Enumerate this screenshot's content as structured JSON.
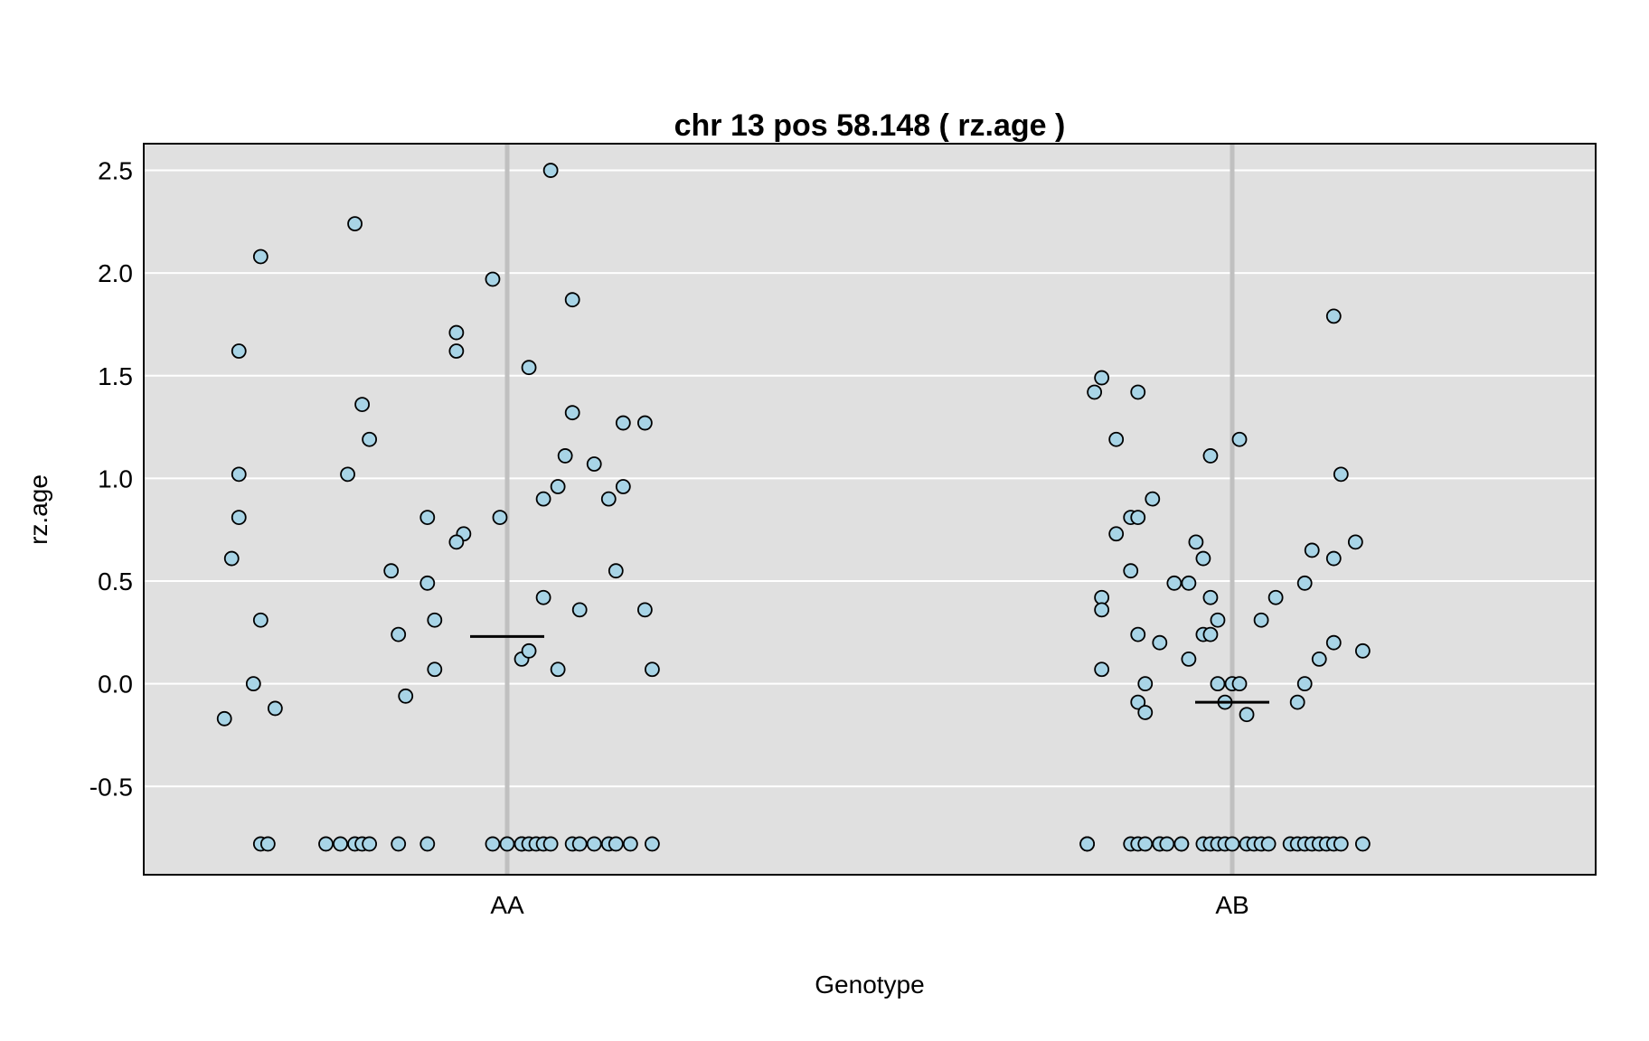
{
  "chart_data": {
    "type": "scatter",
    "title": "chr 13 pos 58.148 ( rz.age )",
    "xlabel": "Genotype",
    "ylabel": "rz.age",
    "categories": [
      "AA",
      "AB"
    ],
    "y_ticks": [
      "2.5",
      "2.0",
      "1.5",
      "1.0",
      "0.5",
      "0.0",
      "-0.5"
    ],
    "ylim": [
      -0.93,
      2.63
    ],
    "grid": true,
    "point_color": "#a8d4e6",
    "panel_color": "#e0e0e0",
    "series": [
      {
        "category": "AA",
        "mean": 0.23,
        "points": [
          {
            "j": -0.39,
            "y": -0.17
          },
          {
            "j": -0.37,
            "y": 1.62
          },
          {
            "j": -0.37,
            "y": 1.02
          },
          {
            "j": -0.37,
            "y": 0.81
          },
          {
            "j": -0.38,
            "y": 0.61
          },
          {
            "j": -0.34,
            "y": 2.08
          },
          {
            "j": -0.34,
            "y": 0.31
          },
          {
            "j": -0.35,
            "y": 0.0
          },
          {
            "j": -0.32,
            "y": -0.12
          },
          {
            "j": -0.21,
            "y": 2.24
          },
          {
            "j": -0.2,
            "y": 1.36
          },
          {
            "j": -0.19,
            "y": 1.19
          },
          {
            "j": -0.22,
            "y": 1.02
          },
          {
            "j": -0.16,
            "y": 0.55
          },
          {
            "j": -0.15,
            "y": 0.24
          },
          {
            "j": -0.14,
            "y": -0.06
          },
          {
            "j": -0.11,
            "y": 0.81
          },
          {
            "j": -0.11,
            "y": 0.49
          },
          {
            "j": -0.1,
            "y": 0.31
          },
          {
            "j": -0.1,
            "y": 0.07
          },
          {
            "j": -0.07,
            "y": 1.71
          },
          {
            "j": -0.07,
            "y": 1.62
          },
          {
            "j": -0.06,
            "y": 0.73
          },
          {
            "j": -0.07,
            "y": 0.69
          },
          {
            "j": -0.02,
            "y": 1.97
          },
          {
            "j": -0.01,
            "y": 0.81
          },
          {
            "j": 0.02,
            "y": 0.12
          },
          {
            "j": 0.03,
            "y": 1.54
          },
          {
            "j": 0.03,
            "y": 0.16
          },
          {
            "j": 0.05,
            "y": 0.9
          },
          {
            "j": 0.05,
            "y": 0.42
          },
          {
            "j": 0.06,
            "y": 2.5
          },
          {
            "j": 0.07,
            "y": 0.96
          },
          {
            "j": 0.07,
            "y": 0.07
          },
          {
            "j": 0.08,
            "y": 1.11
          },
          {
            "j": 0.09,
            "y": 1.87
          },
          {
            "j": 0.09,
            "y": 1.32
          },
          {
            "j": 0.1,
            "y": 0.36
          },
          {
            "j": 0.12,
            "y": 1.07
          },
          {
            "j": 0.14,
            "y": 0.9
          },
          {
            "j": 0.15,
            "y": 0.55
          },
          {
            "j": 0.16,
            "y": 1.27
          },
          {
            "j": 0.16,
            "y": 0.96
          },
          {
            "j": 0.19,
            "y": 1.27
          },
          {
            "j": 0.19,
            "y": 0.36
          },
          {
            "j": 0.2,
            "y": 0.07
          },
          {
            "j": -0.34,
            "y": -0.78
          },
          {
            "j": -0.33,
            "y": -0.78
          },
          {
            "j": -0.25,
            "y": -0.78
          },
          {
            "j": -0.23,
            "y": -0.78
          },
          {
            "j": -0.21,
            "y": -0.78
          },
          {
            "j": -0.2,
            "y": -0.78
          },
          {
            "j": -0.19,
            "y": -0.78
          },
          {
            "j": -0.15,
            "y": -0.78
          },
          {
            "j": -0.11,
            "y": -0.78
          },
          {
            "j": -0.02,
            "y": -0.78
          },
          {
            "j": 0.0,
            "y": -0.78
          },
          {
            "j": 0.02,
            "y": -0.78
          },
          {
            "j": 0.02,
            "y": -0.78
          },
          {
            "j": 0.03,
            "y": -0.78
          },
          {
            "j": 0.04,
            "y": -0.78
          },
          {
            "j": 0.05,
            "y": -0.78
          },
          {
            "j": 0.06,
            "y": -0.78
          },
          {
            "j": 0.09,
            "y": -0.78
          },
          {
            "j": 0.1,
            "y": -0.78
          },
          {
            "j": 0.12,
            "y": -0.78
          },
          {
            "j": 0.14,
            "y": -0.78
          },
          {
            "j": 0.15,
            "y": -0.78
          },
          {
            "j": 0.17,
            "y": -0.78
          },
          {
            "j": 0.2,
            "y": -0.78
          }
        ]
      },
      {
        "category": "AB",
        "mean": -0.09,
        "points": [
          {
            "j": -0.19,
            "y": 1.42
          },
          {
            "j": -0.18,
            "y": 1.49
          },
          {
            "j": -0.13,
            "y": 1.42
          },
          {
            "j": -0.16,
            "y": 1.19
          },
          {
            "j": -0.16,
            "y": 0.73
          },
          {
            "j": -0.14,
            "y": 0.81
          },
          {
            "j": -0.13,
            "y": 0.81
          },
          {
            "j": -0.11,
            "y": 0.9
          },
          {
            "j": -0.14,
            "y": 0.55
          },
          {
            "j": -0.18,
            "y": 0.42
          },
          {
            "j": -0.18,
            "y": 0.36
          },
          {
            "j": -0.18,
            "y": 0.07
          },
          {
            "j": -0.13,
            "y": 0.24
          },
          {
            "j": -0.13,
            "y": -0.09
          },
          {
            "j": -0.12,
            "y": 0.0
          },
          {
            "j": -0.12,
            "y": -0.14
          },
          {
            "j": -0.1,
            "y": 0.2
          },
          {
            "j": -0.08,
            "y": 0.49
          },
          {
            "j": -0.06,
            "y": 0.49
          },
          {
            "j": -0.05,
            "y": 0.69
          },
          {
            "j": -0.04,
            "y": 0.61
          },
          {
            "j": -0.04,
            "y": 0.24
          },
          {
            "j": -0.03,
            "y": 0.42
          },
          {
            "j": -0.03,
            "y": 0.24
          },
          {
            "j": -0.06,
            "y": 0.12
          },
          {
            "j": -0.03,
            "y": 1.11
          },
          {
            "j": -0.02,
            "y": 0.31
          },
          {
            "j": -0.02,
            "y": 0.0
          },
          {
            "j": -0.01,
            "y": -0.09
          },
          {
            "j": 0.0,
            "y": 0.0
          },
          {
            "j": 0.01,
            "y": 0.0
          },
          {
            "j": 0.01,
            "y": 1.19
          },
          {
            "j": 0.02,
            "y": -0.15
          },
          {
            "j": 0.04,
            "y": 0.31
          },
          {
            "j": 0.06,
            "y": 0.42
          },
          {
            "j": 0.09,
            "y": -0.09
          },
          {
            "j": 0.1,
            "y": 0.0
          },
          {
            "j": 0.1,
            "y": 0.49
          },
          {
            "j": 0.11,
            "y": 0.65
          },
          {
            "j": 0.12,
            "y": 0.12
          },
          {
            "j": 0.14,
            "y": 0.61
          },
          {
            "j": 0.14,
            "y": 0.2
          },
          {
            "j": 0.14,
            "y": 1.79
          },
          {
            "j": 0.15,
            "y": 1.02
          },
          {
            "j": 0.17,
            "y": 0.69
          },
          {
            "j": 0.18,
            "y": 0.16
          },
          {
            "j": -0.2,
            "y": -0.78
          },
          {
            "j": -0.2,
            "y": -0.78
          },
          {
            "j": -0.14,
            "y": -0.78
          },
          {
            "j": -0.13,
            "y": -0.78
          },
          {
            "j": -0.12,
            "y": -0.78
          },
          {
            "j": -0.1,
            "y": -0.78
          },
          {
            "j": -0.1,
            "y": -0.78
          },
          {
            "j": -0.09,
            "y": -0.78
          },
          {
            "j": -0.07,
            "y": -0.78
          },
          {
            "j": -0.07,
            "y": -0.78
          },
          {
            "j": -0.04,
            "y": -0.78
          },
          {
            "j": -0.03,
            "y": -0.78
          },
          {
            "j": -0.02,
            "y": -0.78
          },
          {
            "j": -0.01,
            "y": -0.78
          },
          {
            "j": 0.0,
            "y": -0.78
          },
          {
            "j": 0.02,
            "y": -0.78
          },
          {
            "j": 0.03,
            "y": -0.78
          },
          {
            "j": 0.04,
            "y": -0.78
          },
          {
            "j": 0.05,
            "y": -0.78
          },
          {
            "j": 0.08,
            "y": -0.78
          },
          {
            "j": 0.09,
            "y": -0.78
          },
          {
            "j": 0.1,
            "y": -0.78
          },
          {
            "j": 0.11,
            "y": -0.78
          },
          {
            "j": 0.12,
            "y": -0.78
          },
          {
            "j": 0.13,
            "y": -0.78
          },
          {
            "j": 0.14,
            "y": -0.78
          },
          {
            "j": 0.15,
            "y": -0.78
          },
          {
            "j": 0.18,
            "y": -0.78
          }
        ]
      }
    ]
  }
}
